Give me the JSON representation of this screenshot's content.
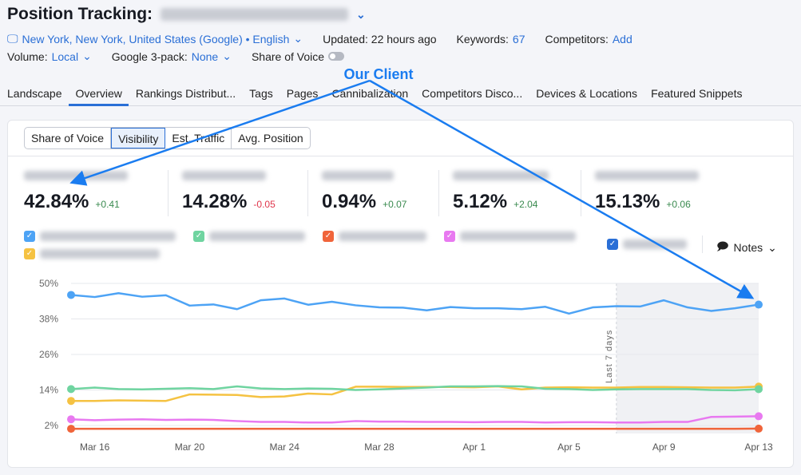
{
  "header": {
    "title": "Position Tracking:",
    "location": "New York, New York, United States (Google) • English",
    "updated": "Updated: 22 hours ago",
    "keywords_label": "Keywords:",
    "keywords_value": "67",
    "competitors_label": "Competitors:",
    "competitors_value": "Add",
    "volume_label": "Volume:",
    "volume_value": "Local",
    "pack_label": "Google 3-pack:",
    "pack_value": "None",
    "sov_label": "Share of Voice",
    "sov_toggle": false
  },
  "tabs": [
    "Landscape",
    "Overview",
    "Rankings Distribut...",
    "Tags",
    "Pages",
    "Cannibalization",
    "Competitors Disco...",
    "Devices & Locations",
    "Featured Snippets"
  ],
  "active_tab": "Overview",
  "metric_tabs": [
    "Share of Voice",
    "Visibility",
    "Est. Traffic",
    "Avg. Position"
  ],
  "active_metric": "Visibility",
  "metrics": [
    {
      "value": "42.84%",
      "delta": "+0.41",
      "trend": "up",
      "color": "#4da3f5"
    },
    {
      "value": "14.28%",
      "delta": "-0.05",
      "trend": "down",
      "color": "#6fd4a0"
    },
    {
      "value": "0.94%",
      "delta": "+0.07",
      "trend": "up",
      "color": "#f0643a"
    },
    {
      "value": "5.12%",
      "delta": "+2.04",
      "trend": "up",
      "color": "#e879f0"
    },
    {
      "value": "15.13%",
      "delta": "+0.06",
      "trend": "up",
      "color": "#f5c242"
    }
  ],
  "notes_label": "Notes",
  "annotation": "Our Client",
  "colors": {
    "accent": "#2a6fd6",
    "positive": "#3a8a4f",
    "negative": "#e0354b",
    "arrow": "#1a7cf0"
  },
  "chart_data": {
    "type": "line",
    "x": [
      "Mar 15",
      "Mar 16",
      "Mar 17",
      "Mar 18",
      "Mar 19",
      "Mar 20",
      "Mar 21",
      "Mar 22",
      "Mar 23",
      "Mar 24",
      "Mar 25",
      "Mar 26",
      "Mar 27",
      "Mar 28",
      "Mar 29",
      "Mar 30",
      "Mar 31",
      "Apr 1",
      "Apr 2",
      "Apr 3",
      "Apr 4",
      "Apr 5",
      "Apr 6",
      "Apr 7",
      "Apr 8",
      "Apr 9",
      "Apr 10",
      "Apr 11",
      "Apr 12",
      "Apr 13"
    ],
    "xticks": [
      "Mar 16",
      "Mar 20",
      "Mar 24",
      "Mar 28",
      "Apr 1",
      "Apr 5",
      "Apr 9",
      "Apr 13"
    ],
    "yticks": [
      "50%",
      "38%",
      "26%",
      "14%",
      "2%"
    ],
    "ylim": [
      2,
      50
    ],
    "grid": true,
    "shaded_region": {
      "label": "Last 7 days",
      "from": "Apr 7",
      "to": "Apr 13"
    },
    "series": [
      {
        "color": "#4da3f5",
        "values": [
          46.1,
          45.4,
          46.7,
          45.5,
          46.0,
          42.5,
          42.9,
          41.3,
          44.3,
          44.9,
          42.8,
          43.8,
          42.6,
          41.9,
          41.8,
          40.9,
          42.0,
          41.6,
          41.6,
          41.3,
          42.1,
          39.8,
          41.9,
          42.3,
          42.2,
          44.3,
          41.9,
          40.7,
          41.6,
          42.84
        ]
      },
      {
        "color": "#6fd4a0",
        "values": [
          14.3,
          14.8,
          14.3,
          14.2,
          14.4,
          14.6,
          14.3,
          15.2,
          14.5,
          14.3,
          14.5,
          14.4,
          14.0,
          14.2,
          14.5,
          14.8,
          15.2,
          15.2,
          15.3,
          15.2,
          14.4,
          14.3,
          14.0,
          14.2,
          14.3,
          14.3,
          14.3,
          14.0,
          13.9,
          14.28
        ]
      },
      {
        "color": "#f5c242",
        "values": [
          10.3,
          10.3,
          10.5,
          10.4,
          10.3,
          12.5,
          12.4,
          12.3,
          11.6,
          11.8,
          12.8,
          12.5,
          15.1,
          15.1,
          15.0,
          15.0,
          15.0,
          14.9,
          15.2,
          14.2,
          14.8,
          14.9,
          14.8,
          14.8,
          15.0,
          15.0,
          14.9,
          14.8,
          14.8,
          15.13
        ]
      },
      {
        "color": "#e879f0",
        "values": [
          4.1,
          3.8,
          4.0,
          4.1,
          3.9,
          4.0,
          3.9,
          3.5,
          3.2,
          3.2,
          3.0,
          3.0,
          3.5,
          3.3,
          3.3,
          3.2,
          3.2,
          3.1,
          3.2,
          3.2,
          3.0,
          3.1,
          3.1,
          3.0,
          3.0,
          3.2,
          3.2,
          4.9,
          5.0,
          5.12
        ]
      },
      {
        "color": "#f0643a",
        "values": [
          0.9,
          0.9,
          0.9,
          0.9,
          0.9,
          0.9,
          0.9,
          0.9,
          0.9,
          0.9,
          0.9,
          0.9,
          0.9,
          0.9,
          0.9,
          0.9,
          0.9,
          0.9,
          0.9,
          0.9,
          0.9,
          0.9,
          0.9,
          0.9,
          0.9,
          0.9,
          0.9,
          0.9,
          0.9,
          0.94
        ]
      }
    ]
  }
}
